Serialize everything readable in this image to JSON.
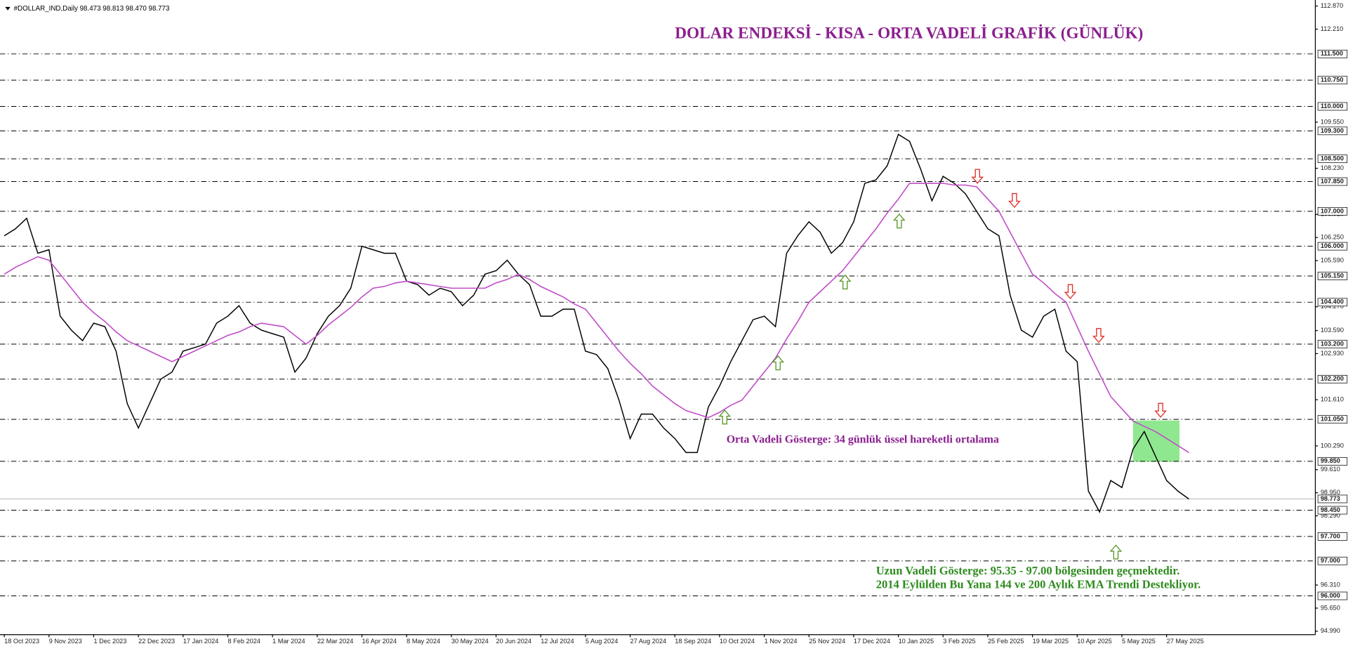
{
  "chart_data": {
    "type": "line",
    "header": "#DOLLAR_IND,Daily  98.473 98.813 98.470 98.773",
    "title": "DOLAR ENDEKSİ - KISA - ORTA VADELİ GRAFİK (GÜNLÜK)",
    "annotations": [
      "Orta Vadeli Gösterge: 34 günlük üssel hareketli ortalama",
      "Uzun Vadeli Gösterge: 95.35 - 97.00 bölgesinden geçmektedir.",
      "2014 Eylülden Bu Yana 144 ve 200 Aylık EMA Trendi Destekliyor."
    ],
    "categories": [
      "18 Oct 2023",
      null,
      null,
      null,
      "9 Nov 2023",
      null,
      null,
      null,
      "1 Dec 2023",
      null,
      null,
      null,
      "22 Dec 2023",
      null,
      null,
      null,
      "17 Jan 2024",
      null,
      null,
      null,
      "8 Feb 2024",
      null,
      null,
      null,
      "1 Mar 2024",
      null,
      null,
      null,
      "22 Mar 2024",
      null,
      null,
      null,
      "16 Apr 2024",
      null,
      null,
      null,
      "8 May 2024",
      null,
      null,
      null,
      "30 May 2024",
      null,
      null,
      null,
      "20 Jun 2024",
      null,
      null,
      null,
      "12 Jul 2024",
      null,
      null,
      null,
      "5 Aug 2024",
      null,
      null,
      null,
      "27 Aug 2024",
      null,
      null,
      null,
      "18 Sep 2024",
      null,
      null,
      null,
      "10 Oct 2024",
      null,
      null,
      null,
      "1 Nov 2024",
      null,
      null,
      null,
      "25 Nov 2024",
      null,
      null,
      null,
      "17 Dec 2024",
      null,
      null,
      null,
      "10 Jan 2025",
      null,
      null,
      null,
      "3 Feb 2025",
      null,
      null,
      null,
      "25 Feb 2025",
      null,
      null,
      null,
      "19 Mar 2025",
      null,
      null,
      null,
      "10 Apr 2025",
      null,
      null,
      null,
      "5 May 2025",
      null,
      null,
      null,
      "27 May 2025",
      null,
      null
    ],
    "series": [
      {
        "color": "#000000",
        "values": [
          106.3,
          106.5,
          106.8,
          105.8,
          105.9,
          104.0,
          103.6,
          103.3,
          103.8,
          103.7,
          103.0,
          101.5,
          100.8,
          101.5,
          102.2,
          102.4,
          103.0,
          103.1,
          103.2,
          103.8,
          104.0,
          104.3,
          103.8,
          103.6,
          103.5,
          103.4,
          102.4,
          102.8,
          103.5,
          104.0,
          104.3,
          104.8,
          106.0,
          105.9,
          105.8,
          105.8,
          105.0,
          104.9,
          104.6,
          104.8,
          104.7,
          104.3,
          104.6,
          105.2,
          105.3,
          105.6,
          105.2,
          104.9,
          104.0,
          104.0,
          104.2,
          104.2,
          103.0,
          102.9,
          102.5,
          101.6,
          100.5,
          101.2,
          101.2,
          100.8,
          100.5,
          100.1,
          100.1,
          101.4,
          102.0,
          102.7,
          103.3,
          103.9,
          104.0,
          103.7,
          105.8,
          106.3,
          106.7,
          106.4,
          105.8,
          106.1,
          106.7,
          107.8,
          107.9,
          108.3,
          109.2,
          109.0,
          108.2,
          107.3,
          108.0,
          107.8,
          107.5,
          107.0,
          106.5,
          106.3,
          104.6,
          103.6,
          103.4,
          104.0,
          104.2,
          103.0,
          102.7,
          99.0,
          98.4,
          99.3,
          99.1,
          100.2,
          100.7,
          100.0,
          99.3,
          99.0,
          98.77
        ]
      },
      {
        "color": "#c04cc8",
        "values": [
          105.2,
          105.4,
          105.55,
          105.7,
          105.6,
          105.2,
          104.8,
          104.4,
          104.1,
          103.85,
          103.55,
          103.3,
          103.15,
          103.0,
          102.85,
          102.7,
          102.85,
          103.0,
          103.15,
          103.3,
          103.45,
          103.55,
          103.7,
          103.8,
          103.75,
          103.7,
          103.45,
          103.2,
          103.45,
          103.75,
          104.0,
          104.25,
          104.55,
          104.8,
          104.85,
          104.95,
          105.0,
          104.95,
          104.9,
          104.85,
          104.8,
          104.8,
          104.8,
          104.8,
          104.95,
          105.05,
          105.2,
          105.05,
          104.85,
          104.7,
          104.55,
          104.35,
          104.2,
          103.8,
          103.4,
          103.0,
          102.65,
          102.35,
          102.0,
          101.75,
          101.5,
          101.3,
          101.2,
          101.1,
          101.25,
          101.45,
          101.6,
          102.0,
          102.4,
          102.8,
          103.35,
          103.85,
          104.4,
          104.7,
          105.0,
          105.3,
          105.7,
          106.1,
          106.5,
          106.95,
          107.35,
          107.8,
          107.8,
          107.8,
          107.8,
          107.75,
          107.75,
          107.7,
          107.35,
          107.0,
          106.4,
          105.8,
          105.2,
          104.95,
          104.65,
          104.4,
          103.7,
          103.0,
          102.35,
          101.7,
          101.35,
          101.0,
          100.85,
          100.7,
          100.5,
          100.3,
          100.1
        ]
      }
    ],
    "ylim": [
      94.99,
      112.87
    ],
    "yticks": [
      {
        "value": 112.87,
        "label": "112.870"
      },
      {
        "value": 112.21,
        "label": "112.210"
      },
      {
        "value": 109.55,
        "label": "109.550"
      },
      {
        "value": 108.23,
        "label": "108.230"
      },
      {
        "value": 106.91,
        "label": "106.910"
      },
      {
        "value": 106.25,
        "label": "106.250"
      },
      {
        "value": 105.59,
        "label": "105.590"
      },
      {
        "value": 104.27,
        "label": "104.270"
      },
      {
        "value": 103.59,
        "label": "103.590"
      },
      {
        "value": 102.93,
        "label": "102.930"
      },
      {
        "value": 101.61,
        "label": "101.610"
      },
      {
        "value": 100.29,
        "label": "100.290"
      },
      {
        "value": 99.61,
        "label": "99.610"
      },
      {
        "value": 98.95,
        "label": "98.950"
      },
      {
        "value": 98.29,
        "label": "98.290"
      },
      {
        "value": 96.31,
        "label": "96.310"
      },
      {
        "value": 95.65,
        "label": "95.650"
      },
      {
        "value": 94.99,
        "label": "94.990"
      }
    ],
    "levels": [
      {
        "value": 111.5,
        "label": "111.500"
      },
      {
        "value": 110.75,
        "label": "110.750"
      },
      {
        "value": 110.0,
        "label": "110.000"
      },
      {
        "value": 109.3,
        "label": "109.300"
      },
      {
        "value": 108.5,
        "label": "108.500"
      },
      {
        "value": 107.85,
        "label": "107.850"
      },
      {
        "value": 107.0,
        "label": "107.000"
      },
      {
        "value": 106.0,
        "label": "106.000"
      },
      {
        "value": 105.15,
        "label": "105.150"
      },
      {
        "value": 104.4,
        "label": "104.400"
      },
      {
        "value": 103.2,
        "label": "103.200"
      },
      {
        "value": 102.2,
        "label": "102.200"
      },
      {
        "value": 101.05,
        "label": "101.050"
      },
      {
        "value": 99.85,
        "label": "99.850"
      },
      {
        "value": 98.45,
        "label": "98.450"
      },
      {
        "value": 97.7,
        "label": "97.700"
      },
      {
        "value": 97.0,
        "label": "97.000"
      },
      {
        "value": 96.0,
        "label": "96.000"
      }
    ],
    "last_price": {
      "value": 98.773,
      "label": "98.773"
    }
  }
}
